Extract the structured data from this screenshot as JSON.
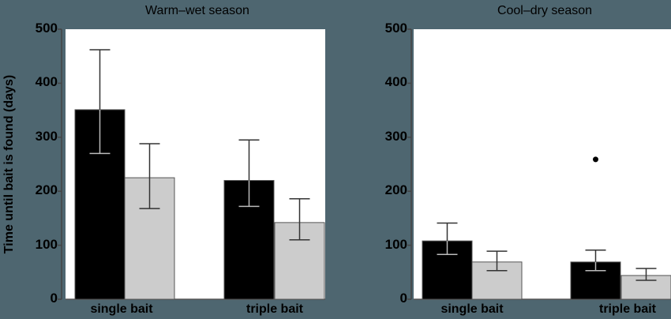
{
  "chart_data": [
    {
      "type": "bar",
      "title": "Warm–wet season",
      "xlabel": "",
      "ylabel": "Time until bait is found (days)",
      "ylim": [
        0,
        500
      ],
      "yticks": [
        0,
        100,
        200,
        300,
        400,
        500
      ],
      "categories": [
        "single bait",
        "triple bait"
      ],
      "series": [
        {
          "name": "black",
          "color": "#000000",
          "values": [
            351,
            220
          ],
          "err_low": [
            270,
            172
          ],
          "err_high": [
            462,
            295
          ]
        },
        {
          "name": "gray",
          "color": "#cccccc",
          "values": [
            225,
            142
          ],
          "err_low": [
            168,
            110
          ],
          "err_high": [
            288,
            186
          ]
        }
      ],
      "grid": false
    },
    {
      "type": "bar",
      "title": "Cool–dry season",
      "xlabel": "",
      "ylabel": "",
      "ylim": [
        0,
        500
      ],
      "yticks": [
        0,
        100,
        200,
        300,
        400,
        500
      ],
      "categories": [
        "single bait",
        "triple bait"
      ],
      "series": [
        {
          "name": "black",
          "color": "#000000",
          "values": [
            108,
            69
          ],
          "err_low": [
            83,
            53
          ],
          "err_high": [
            141,
            91
          ]
        },
        {
          "name": "gray",
          "color": "#cccccc",
          "values": [
            69,
            44
          ],
          "err_low": [
            53,
            35
          ],
          "err_high": [
            89,
            57
          ]
        }
      ],
      "outliers": [
        {
          "category": "triple bait",
          "series": "black",
          "value": 259
        }
      ],
      "grid": false
    }
  ],
  "labels": {
    "left_title": "Warm–wet season",
    "right_title": "Cool–dry season",
    "ylabel": "Time until bait is found (days)",
    "ticks": [
      "0",
      "100",
      "200",
      "300",
      "400",
      "500"
    ],
    "cat1": "single bait",
    "cat2": "triple bait"
  }
}
